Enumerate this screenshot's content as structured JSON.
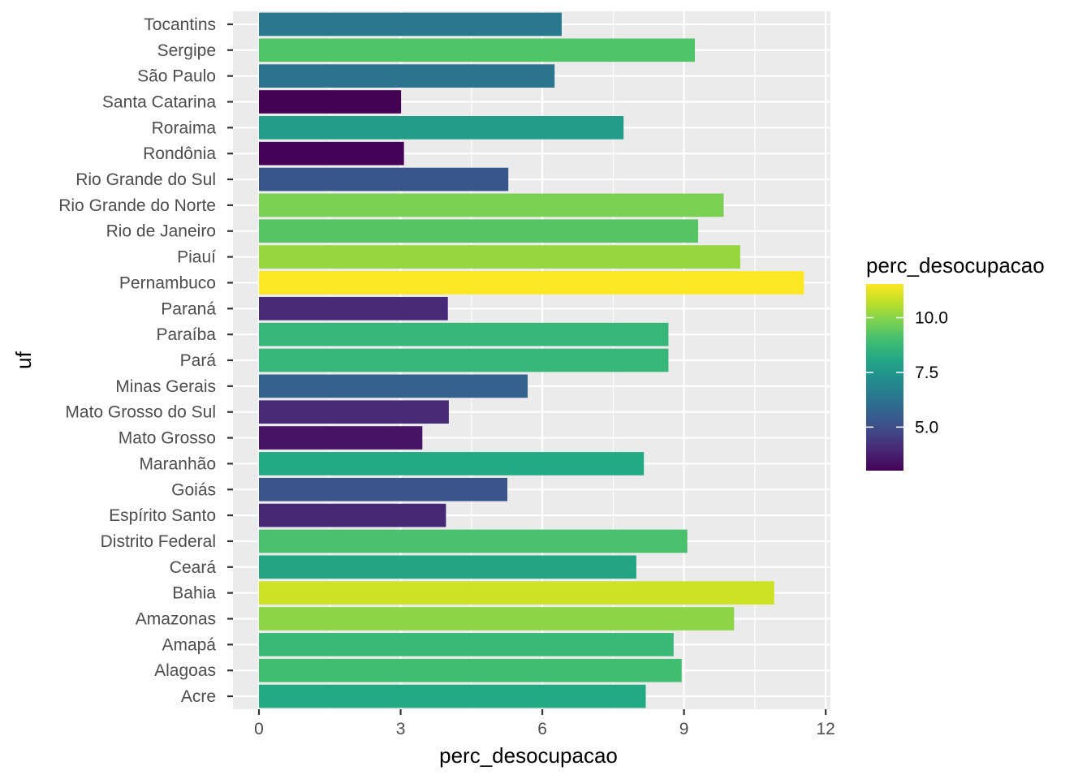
{
  "chart_data": {
    "type": "bar",
    "orientation": "horizontal",
    "xlabel": "perc_desocupacao",
    "ylabel": "uf",
    "xlim": [
      -0.55,
      12.1
    ],
    "x_ticks": [
      "0",
      "3",
      "6",
      "9",
      "12"
    ],
    "x_tick_values": [
      0,
      3,
      6,
      9,
      12
    ],
    "grid": true,
    "categories": [
      "Tocantins",
      "Sergipe",
      "São Paulo",
      "Santa Catarina",
      "Roraima",
      "Rondônia",
      "Rio Grande do Sul",
      "Rio Grande do Norte",
      "Rio de Janeiro",
      "Piauí",
      "Pernambuco",
      "Paraná",
      "Paraíba",
      "Pará",
      "Minas Gerais",
      "Mato Grosso do Sul",
      "Mato Grosso",
      "Maranhão",
      "Goiás",
      "Espírito Santo",
      "Distrito Federal",
      "Ceará",
      "Bahia",
      "Amazonas",
      "Amapá",
      "Alagoas",
      "Acre"
    ],
    "values": [
      6.41,
      9.23,
      6.26,
      3.01,
      7.72,
      3.07,
      5.28,
      9.84,
      9.3,
      10.19,
      11.54,
      4.0,
      8.67,
      8.67,
      5.69,
      4.02,
      3.46,
      8.15,
      5.26,
      3.96,
      9.07,
      7.99,
      10.91,
      10.06,
      8.78,
      8.95,
      8.19
    ],
    "legend": {
      "title": "perc_desocupacao",
      "placement": "right",
      "range": [
        3.01,
        11.54
      ],
      "ticks": [
        "5.0",
        "7.5",
        "10.0"
      ],
      "tick_values": [
        5.0,
        7.5,
        10.0
      ],
      "colormap": "viridis"
    }
  }
}
